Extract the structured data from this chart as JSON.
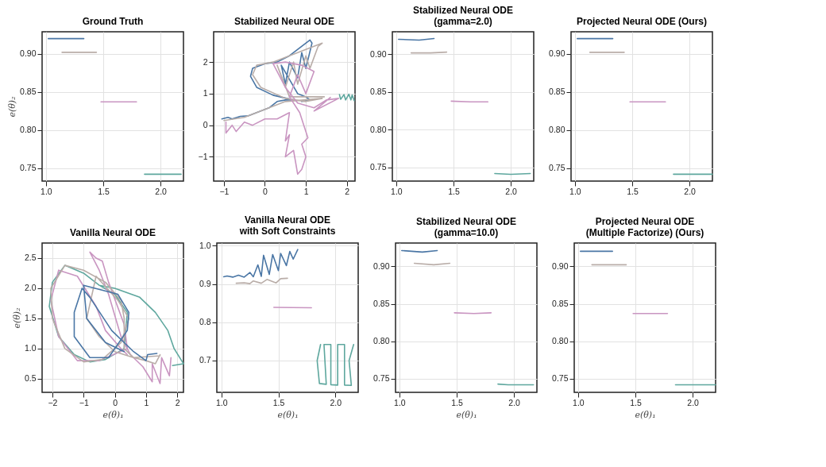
{
  "chart_data": [
    {
      "type": "line",
      "title": "Ground Truth",
      "ylabel": "e(θ)₂",
      "xlim": [
        0.966,
        2.2
      ],
      "ylim": [
        0.733,
        0.929
      ],
      "xticks": [
        {
          "value": 1,
          "label": "1.0"
        },
        {
          "value": 1.5,
          "label": "1.5"
        },
        {
          "value": 2,
          "label": "2.0"
        }
      ],
      "yticks": [
        {
          "value": 0.75,
          "label": "0.75"
        },
        {
          "value": 0.8,
          "label": "0.80"
        },
        {
          "value": 0.85,
          "label": "0.85"
        },
        {
          "value": 0.9,
          "label": "0.90"
        }
      ],
      "grid": true,
      "series": [
        {
          "color": "#4a76a5",
          "x": [
            1.02,
            1.33
          ],
          "values": [
            0.92,
            0.92
          ]
        },
        {
          "color": "#b9ada8",
          "x": [
            1.14,
            1.44
          ],
          "values": [
            0.902,
            0.902
          ]
        },
        {
          "color": "#c995c1",
          "x": [
            1.48,
            1.79
          ],
          "values": [
            0.837,
            0.837
          ]
        },
        {
          "color": "#5ea79e",
          "x": [
            1.86,
            2.18
          ],
          "values": [
            0.742,
            0.742
          ]
        }
      ]
    },
    {
      "type": "line",
      "title": "Stabilized Neural ODE",
      "xlim": [
        -1.25,
        2.2
      ],
      "ylim": [
        -1.77,
        2.96
      ],
      "xticks": [
        {
          "value": -1,
          "label": "−1"
        },
        0,
        1,
        2
      ],
      "yticks": [
        {
          "value": -1,
          "label": "−1"
        },
        0,
        1,
        2
      ],
      "grid": true,
      "series": [
        {
          "color": "#4a76a5",
          "x": [
            -1.05,
            -0.9,
            -0.8,
            -0.6,
            -0.4,
            -0.2,
            0.1,
            0.3,
            0.5,
            0.7,
            0.2,
            -0.2,
            -0.35,
            -0.3,
            0,
            0.3,
            0.6,
            1.1,
            1.15,
            1.0,
            0.9,
            0.8,
            0.6,
            0.5,
            0.4,
            0.8,
            1.0,
            1.1,
            0.9
          ],
          "values": [
            0.2,
            0.25,
            0.2,
            0.28,
            0.3,
            0.4,
            0.55,
            0.75,
            0.8,
            0.8,
            0.95,
            1.2,
            1.55,
            1.8,
            1.95,
            2.0,
            2.2,
            2.7,
            2.6,
            1.8,
            2.3,
            1.5,
            2.0,
            1.3,
            1.9,
            1.0,
            0.9,
            0.8,
            0.75
          ]
        },
        {
          "color": "#b9ada8",
          "x": [
            -1.0,
            -0.5,
            0,
            0.5,
            1.4,
            1.0,
            0.5,
            -0.1,
            -0.3,
            -0.2,
            0.2,
            0.8,
            1.4,
            1.3,
            1.1,
            1.0,
            0.8,
            0.7,
            0.5,
            0.3,
            0.6,
            1.45
          ],
          "values": [
            0.15,
            0.25,
            0.5,
            0.75,
            0.85,
            0.75,
            0.85,
            1.2,
            1.6,
            1.9,
            2.0,
            2.3,
            2.6,
            2.5,
            1.8,
            2.2,
            1.3,
            2.0,
            1.2,
            1.9,
            0.9,
            0.9
          ]
        },
        {
          "color": "#c995c1",
          "x": [
            -0.95,
            -0.95,
            -0.8,
            -0.7,
            -0.5,
            -0.3,
            0,
            0.3,
            0.6,
            0.5,
            0.6,
            0.5,
            0.7,
            0.8,
            0.9,
            1.0,
            0.9,
            1.05,
            0.95,
            0.85,
            0.6,
            0.8,
            1.0,
            1.2,
            0.9,
            0.5,
            0.2,
            0.5,
            0.8,
            1.2,
            1.5,
            1.8,
            1.2,
            1.6
          ],
          "values": [
            0.1,
            -0.25,
            0,
            -0.2,
            0.1,
            0,
            0.2,
            0.2,
            0.4,
            -0.5,
            -0.3,
            -1.0,
            -0.8,
            -1.55,
            -1.4,
            -1.0,
            -0.6,
            -0.4,
            0,
            0.4,
            0.9,
            1.6,
            1.0,
            1.7,
            1.9,
            2.0,
            1.95,
            1.2,
            0.7,
            0.55,
            0.8,
            0.85,
            0.45,
            0.88
          ]
        },
        {
          "color": "#5ea79e",
          "x": [
            1.82,
            1.85,
            1.93,
            1.97,
            2.05,
            2.1,
            2.13,
            2.18
          ],
          "values": [
            0.97,
            0.82,
            0.97,
            0.8,
            0.98,
            0.8,
            0.96,
            0.78
          ]
        }
      ]
    },
    {
      "type": "line",
      "title": "Stabilized Neural ODE\n(gamma=2.0)",
      "xlim": [
        0.966,
        2.2
      ],
      "ylim": [
        0.732,
        0.93
      ],
      "xticks": [
        {
          "value": 1,
          "label": "1.0"
        },
        {
          "value": 1.5,
          "label": "1.5"
        },
        {
          "value": 2,
          "label": "2.0"
        }
      ],
      "yticks": [
        {
          "value": 0.75,
          "label": "0.75"
        },
        {
          "value": 0.8,
          "label": "0.80"
        },
        {
          "value": 0.85,
          "label": "0.85"
        },
        {
          "value": 0.9,
          "label": "0.90"
        }
      ],
      "grid": true,
      "series": [
        {
          "color": "#4a76a5",
          "x": [
            1.02,
            1.2,
            1.33
          ],
          "values": [
            0.92,
            0.919,
            0.921
          ]
        },
        {
          "color": "#b9ada8",
          "x": [
            1.13,
            1.3,
            1.44
          ],
          "values": [
            0.902,
            0.902,
            0.903
          ]
        },
        {
          "color": "#c995c1",
          "x": [
            1.48,
            1.65,
            1.8
          ],
          "values": [
            0.838,
            0.837,
            0.837
          ]
        },
        {
          "color": "#5ea79e",
          "x": [
            1.86,
            2.0,
            2.17
          ],
          "values": [
            0.742,
            0.741,
            0.742
          ]
        }
      ]
    },
    {
      "type": "line",
      "title": "Projected Neural ODE (Ours)",
      "xlim": [
        0.966,
        2.2
      ],
      "ylim": [
        0.733,
        0.929
      ],
      "xticks": [
        {
          "value": 1,
          "label": "1.0"
        },
        {
          "value": 1.5,
          "label": "1.5"
        },
        {
          "value": 2,
          "label": "2.0"
        }
      ],
      "yticks": [
        {
          "value": 0.75,
          "label": "0.75"
        },
        {
          "value": 0.8,
          "label": "0.80"
        },
        {
          "value": 0.85,
          "label": "0.85"
        },
        {
          "value": 0.9,
          "label": "0.90"
        }
      ],
      "grid": true,
      "series": [
        {
          "color": "#4a76a5",
          "x": [
            1.02,
            1.33
          ],
          "values": [
            0.92,
            0.92
          ]
        },
        {
          "color": "#b9ada8",
          "x": [
            1.13,
            1.43
          ],
          "values": [
            0.902,
            0.902
          ]
        },
        {
          "color": "#c995c1",
          "x": [
            1.48,
            1.79
          ],
          "values": [
            0.837,
            0.837
          ]
        },
        {
          "color": "#5ea79e",
          "x": [
            1.86,
            2.2
          ],
          "values": [
            0.742,
            0.742
          ]
        }
      ]
    },
    {
      "type": "line",
      "title": "Vanilla Neural ODE",
      "xlabel": "e(θ)₁",
      "ylabel": "e(θ)₂",
      "xlim": [
        -2.33,
        2.2
      ],
      "ylim": [
        0.275,
        2.75
      ],
      "xticks": [
        {
          "value": -2,
          "label": "−2"
        },
        {
          "value": -1,
          "label": "−1"
        },
        0,
        1,
        2
      ],
      "yticks": [
        0.5,
        {
          "value": 1,
          "label": "1.0"
        },
        1.5,
        {
          "value": 2,
          "label": "2.0"
        },
        2.5
      ],
      "grid": true,
      "series": [
        {
          "color": "#5ea79e",
          "x": [
            1.85,
            2.2,
            1.9,
            1.7,
            1.3,
            0.8,
            0,
            -0.5,
            -1.0,
            -1.6,
            -2.0,
            -2.1,
            -1.8,
            -1.3,
            -0.8,
            -0.3,
            0.3,
            0.4,
            0,
            -0.5
          ],
          "values": [
            0.72,
            0.75,
            1.0,
            1.3,
            1.6,
            1.85,
            2.0,
            2.05,
            2.25,
            2.38,
            2.1,
            1.7,
            1.2,
            0.9,
            0.78,
            0.82,
            1.0,
            1.6,
            1.9,
            2.05
          ]
        },
        {
          "color": "#c995c1",
          "x": [
            1.8,
            1.75,
            1.5,
            1.45,
            1.2,
            1.2,
            0.9,
            0.5,
            0.2,
            0,
            -0.2,
            -0.5,
            -0.8,
            -0.6,
            -0.4,
            -0.2,
            0.3,
            0.4,
            -0.5,
            -1.2,
            -1.8,
            -2.05,
            -1.8,
            -1.2,
            -0.6,
            -0.3,
            0.2,
            0.4
          ],
          "values": [
            0.85,
            0.55,
            0.85,
            0.42,
            0.75,
            0.45,
            0.7,
            0.9,
            1.2,
            1.55,
            1.9,
            2.3,
            2.6,
            2.5,
            2.45,
            2.1,
            1.4,
            1.0,
            0.8,
            0.8,
            1.2,
            1.8,
            2.3,
            2.2,
            1.7,
            1.3,
            1.0,
            0.9
          ]
        },
        {
          "color": "#b9ada8",
          "x": [
            1.45,
            1.3,
            1.0,
            0.6,
            0.3,
            0.3,
            0.2,
            -0.3,
            -1.0,
            -1.6,
            -2.05,
            -2.0,
            -1.6,
            -1.0,
            -0.4,
            0.2,
            0.45,
            0.1,
            -0.6,
            -0.9,
            -0.5,
            0,
            0.6,
            1.45
          ],
          "values": [
            0.9,
            0.75,
            0.8,
            0.85,
            1.0,
            1.5,
            1.8,
            2.1,
            2.3,
            2.38,
            2.0,
            1.5,
            1.0,
            0.78,
            0.82,
            1.1,
            1.5,
            1.8,
            2.2,
            1.5,
            1.2,
            0.95,
            0.85,
            0.88
          ]
        },
        {
          "color": "#4a76a5",
          "x": [
            1.35,
            1.05,
            1.0,
            0.6,
            -0.1,
            -0.8,
            -1.05,
            -1.3,
            -1.3,
            -0.8,
            -0.2,
            0.4,
            0.45,
            0.1,
            -1.0,
            -0.9,
            -0.3,
            0.3
          ],
          "values": [
            0.92,
            0.9,
            0.8,
            0.95,
            1.3,
            1.85,
            2.0,
            1.6,
            1.2,
            0.85,
            0.85,
            1.3,
            1.6,
            1.9,
            2.05,
            1.5,
            1.1,
            0.95
          ]
        }
      ]
    },
    {
      "type": "line",
      "title": "Vanilla Neural ODE\nwith Soft Constraints",
      "xlabel": "e(θ)₁",
      "xlim": [
        0.96,
        2.2
      ],
      "ylim": [
        0.617,
        1.007
      ],
      "xticks": [
        {
          "value": 1,
          "label": "1.0"
        },
        {
          "value": 1.5,
          "label": "1.5"
        },
        {
          "value": 2,
          "label": "2.0"
        }
      ],
      "yticks": [
        0.7,
        0.8,
        0.9,
        {
          "value": 1,
          "label": "1.0"
        }
      ],
      "grid": true,
      "series": [
        {
          "color": "#4a76a5",
          "x": [
            1.02,
            1.05,
            1.1,
            1.15,
            1.2,
            1.25,
            1.28,
            1.32,
            1.35,
            1.37,
            1.42,
            1.45,
            1.5,
            1.52,
            1.57,
            1.6,
            1.63,
            1.67
          ],
          "values": [
            0.919,
            0.921,
            0.918,
            0.923,
            0.918,
            0.93,
            0.919,
            0.95,
            0.92,
            0.975,
            0.925,
            0.977,
            0.935,
            0.98,
            0.948,
            0.985,
            0.965,
            0.99
          ]
        },
        {
          "color": "#b9ada8",
          "x": [
            1.13,
            1.2,
            1.25,
            1.28,
            1.35,
            1.4,
            1.48,
            1.52,
            1.58
          ],
          "values": [
            0.902,
            0.903,
            0.901,
            0.908,
            0.902,
            0.912,
            0.903,
            0.914,
            0.915
          ]
        },
        {
          "color": "#c995c1",
          "x": [
            1.46,
            1.79
          ],
          "values": [
            0.839,
            0.838
          ]
        },
        {
          "color": "#5ea79e",
          "x": [
            1.87,
            1.84,
            1.86,
            1.92,
            1.9,
            1.96,
            1.96,
            2.02,
            2.02,
            2.08,
            2.08,
            2.14,
            2.12,
            2.16
          ],
          "values": [
            0.742,
            0.7,
            0.64,
            0.638,
            0.742,
            0.742,
            0.637,
            0.636,
            0.742,
            0.742,
            0.636,
            0.635,
            0.7,
            0.742
          ]
        }
      ]
    },
    {
      "type": "line",
      "title": "Stabilized Neural ODE\n(gamma=10.0)",
      "xlabel": "e(θ)₁",
      "xlim": [
        0.966,
        2.2
      ],
      "ylim": [
        0.732,
        0.931
      ],
      "xticks": [
        {
          "value": 1,
          "label": "1.0"
        },
        {
          "value": 1.5,
          "label": "1.5"
        },
        {
          "value": 2,
          "label": "2.0"
        }
      ],
      "yticks": [
        {
          "value": 0.75,
          "label": "0.75"
        },
        {
          "value": 0.8,
          "label": "0.80"
        },
        {
          "value": 0.85,
          "label": "0.85"
        },
        {
          "value": 0.9,
          "label": "0.90"
        }
      ],
      "grid": true,
      "series": [
        {
          "color": "#4a76a5",
          "x": [
            1.02,
            1.2,
            1.33
          ],
          "values": [
            0.921,
            0.919,
            0.921
          ]
        },
        {
          "color": "#b9ada8",
          "x": [
            1.13,
            1.3,
            1.44
          ],
          "values": [
            0.904,
            0.902,
            0.904
          ]
        },
        {
          "color": "#c995c1",
          "x": [
            1.48,
            1.65,
            1.8
          ],
          "values": [
            0.838,
            0.837,
            0.838
          ]
        },
        {
          "color": "#5ea79e",
          "x": [
            1.86,
            1.95,
            2.17
          ],
          "values": [
            0.743,
            0.742,
            0.742
          ]
        }
      ]
    },
    {
      "type": "line",
      "title": "Projected Neural ODE\n(Multiple Factorize) (Ours)",
      "xlabel": "e(θ)₁",
      "xlim": [
        0.966,
        2.2
      ],
      "ylim": [
        0.732,
        0.931
      ],
      "xticks": [
        {
          "value": 1,
          "label": "1.0"
        },
        {
          "value": 1.5,
          "label": "1.5"
        },
        {
          "value": 2,
          "label": "2.0"
        }
      ],
      "yticks": [
        {
          "value": 0.75,
          "label": "0.75"
        },
        {
          "value": 0.8,
          "label": "0.80"
        },
        {
          "value": 0.85,
          "label": "0.85"
        },
        {
          "value": 0.9,
          "label": "0.90"
        }
      ],
      "grid": true,
      "series": [
        {
          "color": "#4a76a5",
          "x": [
            1.02,
            1.3
          ],
          "values": [
            0.92,
            0.92
          ]
        },
        {
          "color": "#b9ada8",
          "x": [
            1.12,
            1.42
          ],
          "values": [
            0.902,
            0.902
          ]
        },
        {
          "color": "#c995c1",
          "x": [
            1.48,
            1.78
          ],
          "values": [
            0.837,
            0.837
          ]
        },
        {
          "color": "#5ea79e",
          "x": [
            1.85,
            2.2
          ],
          "values": [
            0.742,
            0.742
          ]
        }
      ]
    }
  ]
}
